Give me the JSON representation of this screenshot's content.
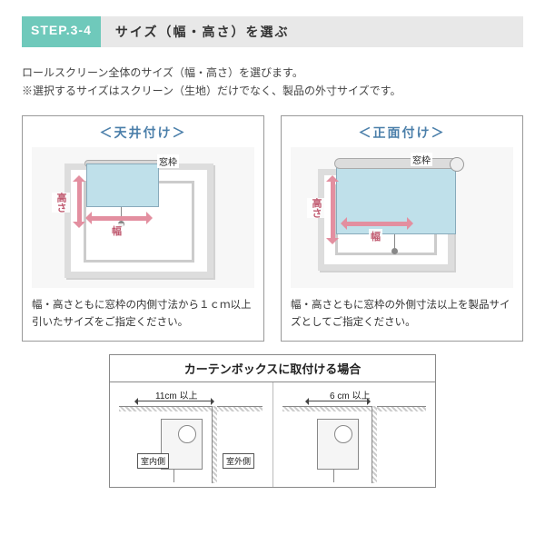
{
  "header": {
    "step_badge": "STEP.3-4",
    "title": "サイズ（幅・高さ）を選ぶ"
  },
  "intro": {
    "line1": "ロールスクリーン全体のサイズ（幅・高さ）を選びます。",
    "line2": "※選択するサイズはスクリーン（生地）だけでなく、製品の外寸サイズです。"
  },
  "panels": {
    "ceiling": {
      "title": "＜天井付け＞",
      "madowaku": "窓枠",
      "width_label": "幅",
      "height_label": "高さ",
      "caption": "幅・高さともに窓枠の内側寸法から１ｃｍ以上引いたサイズをご指定ください。"
    },
    "front": {
      "title": "＜正面付け＞",
      "madowaku": "窓枠",
      "width_label": "幅",
      "height_label": "高さ",
      "caption": "幅・高さともに窓枠の外側寸法以上を製品サイズとしてご指定ください。"
    }
  },
  "bottom": {
    "title": "カーテンボックスに取付ける場合",
    "dim1": "11cm 以上",
    "dim2": "6 cm 以上",
    "tag_inside": "室内側",
    "tag_outside": "室外側"
  },
  "colors": {
    "accent": "#6fc9bb",
    "arrow": "#e38fa0",
    "screen": "#bfe0ea",
    "panel_title": "#4b7faa"
  }
}
